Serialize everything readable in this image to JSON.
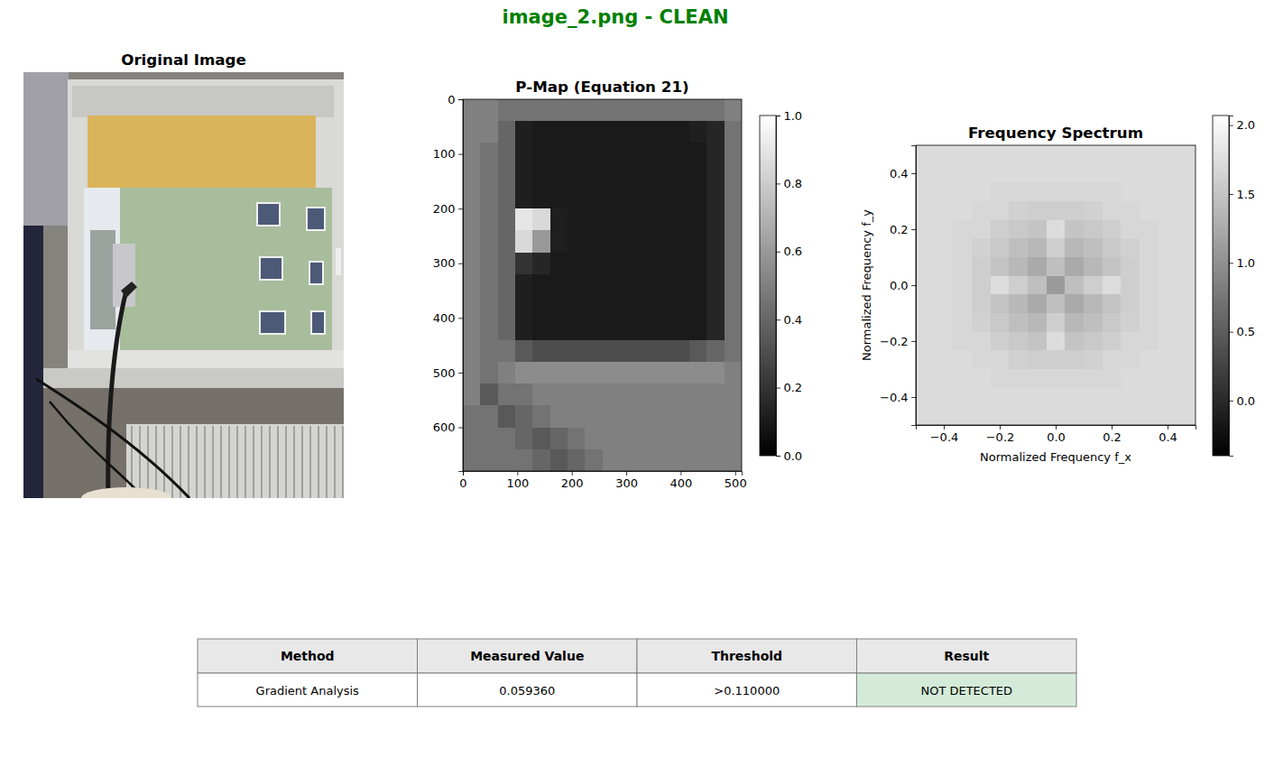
{
  "title": "image_2.png - CLEAN",
  "chart_data": [
    {
      "type": "image",
      "title": "Original Image"
    },
    {
      "type": "heatmap",
      "title": "P-Map (Equation 21)",
      "xlim": [
        0,
        512
      ],
      "ylim": [
        680,
        0
      ],
      "xticks": [
        0,
        100,
        200,
        300,
        400,
        500
      ],
      "yticks": [
        0,
        100,
        200,
        300,
        400,
        500,
        600
      ],
      "colorbar_range": [
        0,
        1
      ],
      "colorbar_ticks": [
        {
          "value": 0,
          "label": "0.0"
        },
        {
          "value": 0.2,
          "label": "0.2"
        },
        {
          "value": 0.4,
          "label": "0.4"
        },
        {
          "value": 0.6,
          "label": "0.6"
        },
        {
          "value": 0.8,
          "label": "0.8"
        },
        {
          "value": 1,
          "label": "1.0"
        }
      ],
      "z": [
        [
          0.5,
          0.5,
          0.45,
          0.45,
          0.45,
          0.45,
          0.45,
          0.45,
          0.45,
          0.45,
          0.45,
          0.45,
          0.45,
          0.45,
          0.45,
          0.5
        ],
        [
          0.5,
          0.5,
          0.4,
          0.12,
          0.1,
          0.1,
          0.1,
          0.1,
          0.1,
          0.1,
          0.1,
          0.1,
          0.1,
          0.12,
          0.15,
          0.45
        ],
        [
          0.5,
          0.45,
          0.4,
          0.12,
          0.1,
          0.1,
          0.1,
          0.1,
          0.1,
          0.1,
          0.1,
          0.1,
          0.1,
          0.1,
          0.15,
          0.45
        ],
        [
          0.5,
          0.45,
          0.4,
          0.12,
          0.1,
          0.1,
          0.1,
          0.1,
          0.1,
          0.1,
          0.1,
          0.1,
          0.1,
          0.1,
          0.15,
          0.45
        ],
        [
          0.5,
          0.45,
          0.4,
          0.12,
          0.1,
          0.1,
          0.1,
          0.1,
          0.1,
          0.1,
          0.1,
          0.1,
          0.1,
          0.1,
          0.15,
          0.45
        ],
        [
          0.5,
          0.45,
          0.4,
          0.9,
          0.85,
          0.12,
          0.1,
          0.1,
          0.1,
          0.1,
          0.1,
          0.1,
          0.1,
          0.1,
          0.15,
          0.45
        ],
        [
          0.5,
          0.45,
          0.4,
          0.85,
          0.6,
          0.12,
          0.1,
          0.1,
          0.1,
          0.1,
          0.1,
          0.1,
          0.1,
          0.1,
          0.15,
          0.45
        ],
        [
          0.5,
          0.45,
          0.4,
          0.2,
          0.15,
          0.1,
          0.1,
          0.1,
          0.1,
          0.1,
          0.1,
          0.1,
          0.1,
          0.1,
          0.15,
          0.45
        ],
        [
          0.5,
          0.45,
          0.4,
          0.12,
          0.1,
          0.1,
          0.1,
          0.1,
          0.1,
          0.1,
          0.1,
          0.1,
          0.1,
          0.1,
          0.15,
          0.45
        ],
        [
          0.5,
          0.45,
          0.4,
          0.12,
          0.1,
          0.1,
          0.1,
          0.1,
          0.1,
          0.1,
          0.1,
          0.1,
          0.1,
          0.1,
          0.15,
          0.45
        ],
        [
          0.5,
          0.45,
          0.4,
          0.12,
          0.1,
          0.1,
          0.1,
          0.1,
          0.1,
          0.1,
          0.1,
          0.1,
          0.1,
          0.1,
          0.15,
          0.45
        ],
        [
          0.5,
          0.45,
          0.45,
          0.35,
          0.3,
          0.3,
          0.3,
          0.3,
          0.3,
          0.3,
          0.3,
          0.3,
          0.3,
          0.35,
          0.4,
          0.45
        ],
        [
          0.5,
          0.45,
          0.5,
          0.55,
          0.55,
          0.55,
          0.55,
          0.55,
          0.55,
          0.55,
          0.55,
          0.55,
          0.55,
          0.55,
          0.55,
          0.5
        ],
        [
          0.5,
          0.35,
          0.45,
          0.45,
          0.5,
          0.5,
          0.5,
          0.5,
          0.5,
          0.5,
          0.5,
          0.5,
          0.5,
          0.5,
          0.5,
          0.5
        ],
        [
          0.45,
          0.45,
          0.35,
          0.4,
          0.45,
          0.5,
          0.5,
          0.5,
          0.5,
          0.5,
          0.5,
          0.5,
          0.5,
          0.5,
          0.5,
          0.5
        ],
        [
          0.45,
          0.45,
          0.45,
          0.4,
          0.35,
          0.4,
          0.45,
          0.5,
          0.5,
          0.5,
          0.5,
          0.5,
          0.5,
          0.5,
          0.5,
          0.5
        ],
        [
          0.45,
          0.45,
          0.45,
          0.45,
          0.4,
          0.35,
          0.4,
          0.45,
          0.5,
          0.5,
          0.5,
          0.5,
          0.5,
          0.5,
          0.5,
          0.5
        ]
      ]
    },
    {
      "type": "heatmap",
      "title": "Frequency Spectrum",
      "x_label": "Normalized Frequency f_x",
      "y_label": "Normalized Frequency f_y",
      "xlim": [
        -0.5,
        0.5
      ],
      "ylim": [
        -0.5,
        0.5
      ],
      "xticks": [
        {
          "value": -0.4,
          "label": "−0.4"
        },
        {
          "value": -0.2,
          "label": "−0.2"
        },
        {
          "value": 0,
          "label": "0.0"
        },
        {
          "value": 0.2,
          "label": "0.2"
        },
        {
          "value": 0.4,
          "label": "0.4"
        }
      ],
      "yticks": [
        {
          "value": -0.4,
          "label": "−0.4"
        },
        {
          "value": -0.2,
          "label": "−0.2"
        },
        {
          "value": 0,
          "label": "0.0"
        },
        {
          "value": 0.2,
          "label": "0.2"
        },
        {
          "value": 0.4,
          "label": "0.4"
        }
      ],
      "colorbar_range": [
        -0.4,
        2.07
      ],
      "colorbar_ticks": [
        {
          "value": 0,
          "label": "0.0"
        },
        0.5,
        {
          "value": 1,
          "label": "1.0"
        },
        1.5,
        {
          "value": 2,
          "label": "2.0"
        }
      ],
      "z": [
        [
          1.72,
          1.72,
          1.72,
          1.72,
          1.72,
          1.72,
          1.72,
          1.72,
          1.72,
          1.72,
          1.72,
          1.72,
          1.72,
          1.72,
          1.72
        ],
        [
          1.72,
          1.72,
          1.72,
          1.72,
          1.72,
          1.72,
          1.72,
          1.72,
          1.72,
          1.72,
          1.72,
          1.72,
          1.72,
          1.72,
          1.72
        ],
        [
          1.72,
          1.72,
          1.72,
          1.72,
          1.68,
          1.68,
          1.68,
          1.68,
          1.68,
          1.68,
          1.68,
          1.72,
          1.72,
          1.72,
          1.72
        ],
        [
          1.72,
          1.72,
          1.72,
          1.68,
          1.68,
          1.62,
          1.6,
          1.6,
          1.6,
          1.62,
          1.68,
          1.68,
          1.72,
          1.72,
          1.72
        ],
        [
          1.72,
          1.72,
          1.68,
          1.68,
          1.6,
          1.55,
          1.5,
          1.73,
          1.5,
          1.55,
          1.6,
          1.68,
          1.68,
          1.72,
          1.72
        ],
        [
          1.72,
          1.72,
          1.68,
          1.62,
          1.55,
          1.45,
          1.38,
          1.6,
          1.38,
          1.45,
          1.55,
          1.62,
          1.68,
          1.72,
          1.72
        ],
        [
          1.72,
          1.72,
          1.68,
          1.6,
          1.5,
          1.38,
          1.25,
          1.45,
          1.25,
          1.38,
          1.5,
          1.6,
          1.68,
          1.72,
          1.72
        ],
        [
          1.72,
          1.72,
          1.68,
          1.6,
          1.73,
          1.6,
          1.45,
          1.1,
          1.45,
          1.6,
          1.73,
          1.6,
          1.68,
          1.72,
          1.72
        ],
        [
          1.72,
          1.72,
          1.68,
          1.6,
          1.5,
          1.38,
          1.25,
          1.45,
          1.25,
          1.38,
          1.5,
          1.6,
          1.68,
          1.72,
          1.72
        ],
        [
          1.72,
          1.72,
          1.68,
          1.62,
          1.55,
          1.45,
          1.38,
          1.6,
          1.38,
          1.45,
          1.55,
          1.62,
          1.68,
          1.72,
          1.72
        ],
        [
          1.72,
          1.72,
          1.68,
          1.68,
          1.6,
          1.55,
          1.5,
          1.73,
          1.5,
          1.55,
          1.6,
          1.68,
          1.68,
          1.72,
          1.72
        ],
        [
          1.72,
          1.72,
          1.72,
          1.68,
          1.68,
          1.62,
          1.6,
          1.6,
          1.6,
          1.62,
          1.68,
          1.68,
          1.72,
          1.72,
          1.72
        ],
        [
          1.72,
          1.72,
          1.72,
          1.72,
          1.68,
          1.68,
          1.68,
          1.68,
          1.68,
          1.68,
          1.68,
          1.72,
          1.72,
          1.72,
          1.72
        ],
        [
          1.72,
          1.72,
          1.72,
          1.72,
          1.72,
          1.72,
          1.72,
          1.72,
          1.72,
          1.72,
          1.72,
          1.72,
          1.72,
          1.72,
          1.72
        ],
        [
          1.72,
          1.72,
          1.72,
          1.72,
          1.72,
          1.72,
          1.72,
          1.72,
          1.72,
          1.72,
          1.72,
          1.72,
          1.72,
          1.72,
          1.72
        ]
      ]
    }
  ],
  "table": {
    "columns": [
      "Method",
      "Measured Value",
      "Threshold",
      "Result"
    ],
    "rows": [
      [
        "Gradient Analysis",
        "0.059360",
        ">0.110000",
        "NOT DETECTED"
      ]
    ]
  }
}
